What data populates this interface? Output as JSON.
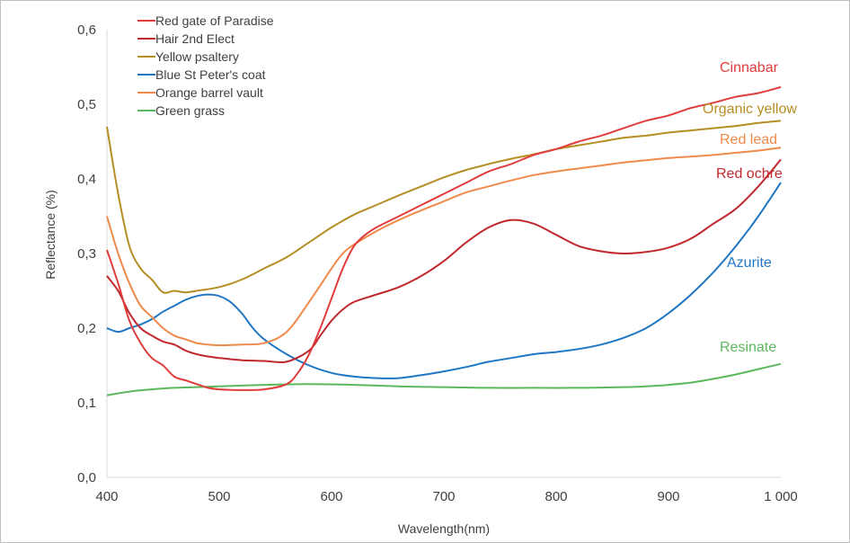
{
  "chart_data": {
    "type": "line",
    "title": "",
    "xlabel": "Wavelength(nm)",
    "ylabel": "Reflectance (%)",
    "xlim": [
      400,
      1000
    ],
    "ylim": [
      0,
      0.6
    ],
    "x_ticks": [
      400,
      500,
      600,
      700,
      800,
      900,
      1000
    ],
    "x_tick_labels": [
      "400",
      "500",
      "600",
      "700",
      "800",
      "900",
      "1 000"
    ],
    "y_ticks": [
      0,
      0.1,
      0.2,
      0.3,
      0.4,
      0.5,
      0.6
    ],
    "y_tick_labels": [
      "0,0",
      "0,1",
      "0,2",
      "0,3",
      "0,4",
      "0,5",
      "0,6"
    ],
    "grid": false,
    "legend_position": "top-left",
    "series": [
      {
        "name": "Red gate of Paradise",
        "color": "#e03c3c",
        "annotation": "Cinnabar",
        "annotation_color": "#e03c3c",
        "points": [
          [
            400,
            0.305
          ],
          [
            410,
            0.26
          ],
          [
            420,
            0.21
          ],
          [
            430,
            0.18
          ],
          [
            440,
            0.16
          ],
          [
            450,
            0.15
          ],
          [
            460,
            0.135
          ],
          [
            470,
            0.13
          ],
          [
            480,
            0.125
          ],
          [
            490,
            0.12
          ],
          [
            500,
            0.118
          ],
          [
            520,
            0.117
          ],
          [
            540,
            0.118
          ],
          [
            560,
            0.125
          ],
          [
            570,
            0.14
          ],
          [
            580,
            0.165
          ],
          [
            590,
            0.2
          ],
          [
            600,
            0.24
          ],
          [
            610,
            0.28
          ],
          [
            620,
            0.31
          ],
          [
            630,
            0.325
          ],
          [
            640,
            0.335
          ],
          [
            660,
            0.35
          ],
          [
            680,
            0.365
          ],
          [
            700,
            0.38
          ],
          [
            720,
            0.395
          ],
          [
            740,
            0.41
          ],
          [
            760,
            0.42
          ],
          [
            780,
            0.432
          ],
          [
            800,
            0.44
          ],
          [
            820,
            0.45
          ],
          [
            840,
            0.458
          ],
          [
            860,
            0.468
          ],
          [
            880,
            0.478
          ],
          [
            900,
            0.485
          ],
          [
            920,
            0.495
          ],
          [
            940,
            0.502
          ],
          [
            960,
            0.51
          ],
          [
            980,
            0.515
          ],
          [
            1000,
            0.523
          ]
        ]
      },
      {
        "name": "Hair 2nd Elect",
        "color": "#c0282d",
        "annotation": "Red ochre",
        "annotation_color": "#c0282d",
        "points": [
          [
            400,
            0.27
          ],
          [
            410,
            0.25
          ],
          [
            420,
            0.22
          ],
          [
            430,
            0.2
          ],
          [
            440,
            0.19
          ],
          [
            450,
            0.182
          ],
          [
            460,
            0.178
          ],
          [
            470,
            0.17
          ],
          [
            480,
            0.165
          ],
          [
            490,
            0.162
          ],
          [
            500,
            0.16
          ],
          [
            520,
            0.157
          ],
          [
            540,
            0.156
          ],
          [
            560,
            0.155
          ],
          [
            580,
            0.17
          ],
          [
            590,
            0.19
          ],
          [
            600,
            0.21
          ],
          [
            610,
            0.225
          ],
          [
            620,
            0.235
          ],
          [
            640,
            0.245
          ],
          [
            660,
            0.255
          ],
          [
            680,
            0.27
          ],
          [
            700,
            0.29
          ],
          [
            720,
            0.315
          ],
          [
            740,
            0.335
          ],
          [
            760,
            0.345
          ],
          [
            780,
            0.34
          ],
          [
            800,
            0.325
          ],
          [
            820,
            0.31
          ],
          [
            840,
            0.303
          ],
          [
            860,
            0.3
          ],
          [
            880,
            0.302
          ],
          [
            900,
            0.308
          ],
          [
            920,
            0.32
          ],
          [
            940,
            0.34
          ],
          [
            960,
            0.36
          ],
          [
            980,
            0.39
          ],
          [
            1000,
            0.426
          ]
        ]
      },
      {
        "name": "Yellow psaltery",
        "color": "#b58e24",
        "annotation": "Organic yellow",
        "annotation_color": "#b58e24",
        "points": [
          [
            400,
            0.47
          ],
          [
            410,
            0.38
          ],
          [
            420,
            0.31
          ],
          [
            430,
            0.28
          ],
          [
            440,
            0.265
          ],
          [
            450,
            0.248
          ],
          [
            460,
            0.25
          ],
          [
            470,
            0.248
          ],
          [
            480,
            0.25
          ],
          [
            500,
            0.255
          ],
          [
            520,
            0.265
          ],
          [
            540,
            0.28
          ],
          [
            560,
            0.295
          ],
          [
            580,
            0.315
          ],
          [
            600,
            0.335
          ],
          [
            620,
            0.352
          ],
          [
            640,
            0.365
          ],
          [
            660,
            0.378
          ],
          [
            680,
            0.39
          ],
          [
            700,
            0.402
          ],
          [
            720,
            0.412
          ],
          [
            740,
            0.42
          ],
          [
            760,
            0.427
          ],
          [
            780,
            0.433
          ],
          [
            800,
            0.44
          ],
          [
            820,
            0.445
          ],
          [
            840,
            0.45
          ],
          [
            860,
            0.455
          ],
          [
            880,
            0.458
          ],
          [
            900,
            0.462
          ],
          [
            920,
            0.465
          ],
          [
            940,
            0.468
          ],
          [
            960,
            0.471
          ],
          [
            980,
            0.475
          ],
          [
            1000,
            0.478
          ]
        ]
      },
      {
        "name": "Blue St Peter's coat",
        "color": "#1f77c4",
        "annotation": "Azurite",
        "annotation_color": "#1f77c4",
        "points": [
          [
            400,
            0.2
          ],
          [
            410,
            0.195
          ],
          [
            420,
            0.2
          ],
          [
            430,
            0.205
          ],
          [
            440,
            0.212
          ],
          [
            450,
            0.222
          ],
          [
            460,
            0.23
          ],
          [
            470,
            0.238
          ],
          [
            480,
            0.243
          ],
          [
            490,
            0.245
          ],
          [
            500,
            0.243
          ],
          [
            510,
            0.235
          ],
          [
            520,
            0.22
          ],
          [
            530,
            0.2
          ],
          [
            540,
            0.185
          ],
          [
            560,
            0.165
          ],
          [
            580,
            0.15
          ],
          [
            600,
            0.14
          ],
          [
            620,
            0.135
          ],
          [
            640,
            0.133
          ],
          [
            660,
            0.133
          ],
          [
            680,
            0.137
          ],
          [
            700,
            0.142
          ],
          [
            720,
            0.148
          ],
          [
            740,
            0.155
          ],
          [
            760,
            0.16
          ],
          [
            780,
            0.165
          ],
          [
            800,
            0.168
          ],
          [
            820,
            0.172
          ],
          [
            840,
            0.178
          ],
          [
            860,
            0.187
          ],
          [
            880,
            0.2
          ],
          [
            900,
            0.22
          ],
          [
            920,
            0.245
          ],
          [
            940,
            0.275
          ],
          [
            960,
            0.31
          ],
          [
            980,
            0.35
          ],
          [
            1000,
            0.395
          ]
        ]
      },
      {
        "name": "Orange barrel vault",
        "color": "#f08a4b",
        "annotation": "Red lead",
        "annotation_color": "#f08a4b",
        "points": [
          [
            400,
            0.35
          ],
          [
            410,
            0.3
          ],
          [
            420,
            0.26
          ],
          [
            430,
            0.23
          ],
          [
            440,
            0.215
          ],
          [
            450,
            0.2
          ],
          [
            460,
            0.19
          ],
          [
            470,
            0.185
          ],
          [
            480,
            0.18
          ],
          [
            490,
            0.178
          ],
          [
            500,
            0.177
          ],
          [
            520,
            0.178
          ],
          [
            540,
            0.18
          ],
          [
            560,
            0.195
          ],
          [
            580,
            0.235
          ],
          [
            600,
            0.28
          ],
          [
            610,
            0.3
          ],
          [
            620,
            0.312
          ],
          [
            640,
            0.33
          ],
          [
            660,
            0.345
          ],
          [
            680,
            0.358
          ],
          [
            700,
            0.37
          ],
          [
            720,
            0.382
          ],
          [
            740,
            0.39
          ],
          [
            760,
            0.398
          ],
          [
            780,
            0.405
          ],
          [
            800,
            0.41
          ],
          [
            820,
            0.414
          ],
          [
            840,
            0.418
          ],
          [
            860,
            0.422
          ],
          [
            880,
            0.425
          ],
          [
            900,
            0.428
          ],
          [
            920,
            0.43
          ],
          [
            940,
            0.432
          ],
          [
            960,
            0.435
          ],
          [
            980,
            0.438
          ],
          [
            1000,
            0.442
          ]
        ]
      },
      {
        "name": "Green grass",
        "color": "#5cb85c",
        "annotation": "Resinate",
        "annotation_color": "#5cb85c",
        "points": [
          [
            400,
            0.11
          ],
          [
            420,
            0.115
          ],
          [
            440,
            0.118
          ],
          [
            460,
            0.12
          ],
          [
            480,
            0.121
          ],
          [
            500,
            0.122
          ],
          [
            540,
            0.124
          ],
          [
            580,
            0.125
          ],
          [
            620,
            0.124
          ],
          [
            660,
            0.122
          ],
          [
            700,
            0.121
          ],
          [
            740,
            0.12
          ],
          [
            780,
            0.12
          ],
          [
            820,
            0.12
          ],
          [
            860,
            0.121
          ],
          [
            880,
            0.122
          ],
          [
            900,
            0.124
          ],
          [
            920,
            0.127
          ],
          [
            940,
            0.132
          ],
          [
            960,
            0.138
          ],
          [
            980,
            0.145
          ],
          [
            1000,
            0.152
          ]
        ]
      }
    ]
  }
}
